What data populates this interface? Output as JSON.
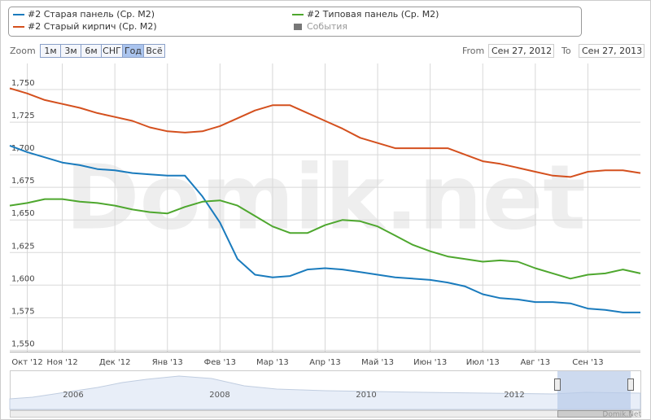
{
  "chart_data": {
    "type": "line",
    "categories": [
      null,
      "Окт '12",
      null,
      "Ноя '12",
      null,
      null,
      "Дек '12",
      null,
      null,
      "Янв '13",
      null,
      null,
      "Фев '13",
      null,
      null,
      "Мар '13",
      null,
      null,
      "Апр '13",
      null,
      null,
      "Май '13",
      null,
      null,
      "Июн '13",
      null,
      null,
      "Июл '13",
      null,
      null,
      "Авг '13",
      null,
      null,
      "Сен '13",
      null,
      null,
      null
    ],
    "series": [
      {
        "name": "#2 Старая панель (Ср. М2)",
        "color": "#1a7bbd",
        "values": [
          1707,
          1702,
          1698,
          1694,
          1692,
          1689,
          1688,
          1686,
          1685,
          1684,
          1684,
          1668,
          1648,
          1620,
          1608,
          1606,
          1607,
          1612,
          1613,
          1612,
          1610,
          1608,
          1606,
          1605,
          1604,
          1602,
          1599,
          1593,
          1590,
          1589,
          1587,
          1587,
          1586,
          1582,
          1581,
          1579,
          1579
        ]
      },
      {
        "name": "#2 Старый кирпич (Ср. М2)",
        "color": "#d4501e",
        "values": [
          1751,
          1747,
          1742,
          1739,
          1736,
          1732,
          1729,
          1726,
          1721,
          1718,
          1717,
          1718,
          1722,
          1728,
          1734,
          1738,
          1738,
          1732,
          1726,
          1720,
          1713,
          1709,
          1705,
          1705,
          1705,
          1705,
          1700,
          1695,
          1693,
          1690,
          1687,
          1684,
          1683,
          1687,
          1688,
          1688,
          1686
        ]
      },
      {
        "name": "#2 Типовая панель (Ср. М2)",
        "color": "#4ea72e",
        "values": [
          1661,
          1663,
          1666,
          1666,
          1664,
          1663,
          1661,
          1658,
          1656,
          1655,
          1660,
          1664,
          1665,
          1661,
          1653,
          1645,
          1640,
          1640,
          1646,
          1650,
          1649,
          1645,
          1638,
          1631,
          1626,
          1622,
          1620,
          1618,
          1619,
          1618,
          1613,
          1609,
          1605,
          1608,
          1609,
          1612,
          1609
        ]
      }
    ],
    "ylim": [
      1549,
      1770
    ],
    "yticks": [
      {
        "value": 1550,
        "label": "1,550"
      },
      {
        "value": 1575,
        "label": "1,575"
      },
      {
        "value": 1600,
        "label": "1,600"
      },
      {
        "value": 1625,
        "label": "1,625"
      },
      {
        "value": 1650,
        "label": "1,650"
      },
      {
        "value": 1675,
        "label": "1,675"
      },
      {
        "value": 1700,
        "label": "1,700"
      },
      {
        "value": 1725,
        "label": "1,725"
      },
      {
        "value": 1750,
        "label": "1,750"
      }
    ],
    "grid": true
  },
  "ui": {
    "zoom_label": "Zoom",
    "zoom_buttons": [
      "1м",
      "3м",
      "6м",
      "СНГ",
      "Год",
      "Всё"
    ],
    "from_label": "From",
    "from": "Сен 27, 2012",
    "to_label": "To",
    "to": "Сен 27, 2013",
    "events_label": "События",
    "watermark": "Domik.net",
    "credits": "Domik.Net",
    "navigator_labels": [
      "2006",
      "2008",
      "2010",
      "2012"
    ]
  }
}
